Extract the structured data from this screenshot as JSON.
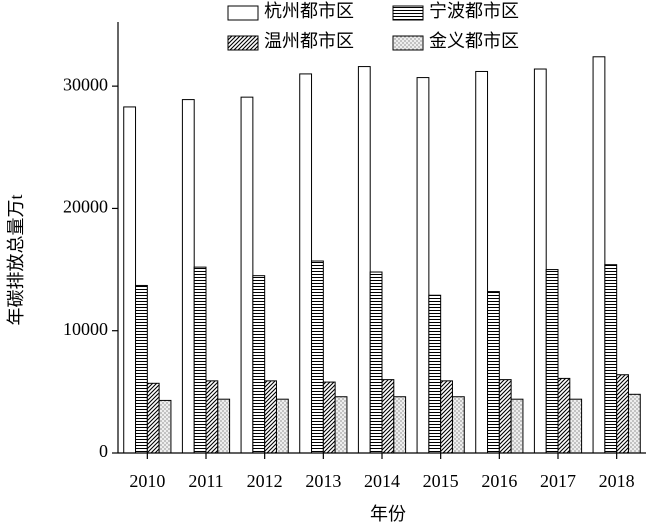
{
  "chart_data": {
    "type": "bar",
    "x_label": "年份",
    "y_label": "年碳排放总量万t",
    "categories": [
      "2010",
      "2011",
      "2012",
      "2013",
      "2014",
      "2015",
      "2016",
      "2017",
      "2018"
    ],
    "series": [
      {
        "name": "杭州都市区",
        "color": "#ffffff",
        "pattern": "solid",
        "values": [
          28300,
          28900,
          29100,
          31000,
          31600,
          30700,
          31200,
          31400,
          32400
        ]
      },
      {
        "name": "宁波都市区",
        "color": "#ffffff",
        "pattern": "horizontal",
        "values": [
          13700,
          15200,
          14500,
          15700,
          14800,
          12900,
          13200,
          15000,
          15400
        ]
      },
      {
        "name": "温州都市区",
        "color": "#ffffff",
        "pattern": "diagonal",
        "values": [
          5700,
          5900,
          5900,
          5800,
          6000,
          5900,
          6000,
          6100,
          6400
        ]
      },
      {
        "name": "金义都市区",
        "color": "#ffffff",
        "pattern": "dots",
        "values": [
          4300,
          4400,
          4400,
          4600,
          4600,
          4600,
          4400,
          4400,
          4800
        ]
      }
    ],
    "ylim": [
      0,
      35000
    ],
    "yticks": [
      0,
      10000,
      20000,
      30000
    ]
  }
}
